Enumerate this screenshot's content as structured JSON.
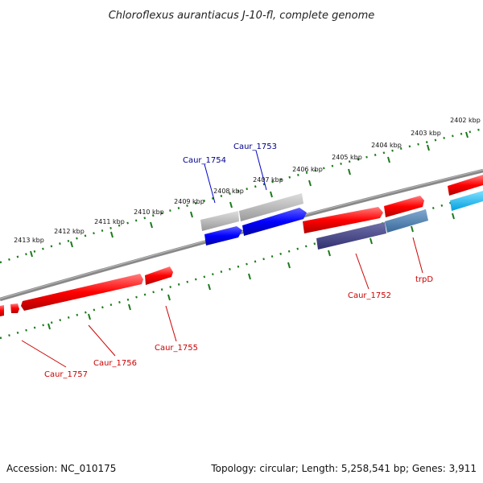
{
  "title": "Chloroflexus aurantiacus J-10-fl, complete genome",
  "footer": {
    "accession": "Accession: NC_010175",
    "summary": "Topology: circular; Length: 5,258,541 bp; Genes: 3,911"
  },
  "colors": {
    "backbone": "#888888",
    "tick": "#1b7a1b",
    "forward_cds": "#ff0000",
    "reverse_cds": "#0000ff",
    "rna": "#aaaaaa",
    "forward_label": "#cc0000",
    "reverse_label": "#00008b",
    "gene_highlight": "#4a4a8a",
    "trpD": "#4a7aaa",
    "cyan": "#00bfff"
  },
  "axis": {
    "tick_labels": [
      "2402 kbp",
      "2403 kbp",
      "2404 kbp",
      "2405 kbp",
      "2406 kbp",
      "2407 kbp",
      "2408 kbp",
      "2409 kbp",
      "2410 kbp",
      "2411 kbp",
      "2412 kbp",
      "2413 kbp"
    ]
  },
  "genes": [
    {
      "name": "Caur_1754",
      "strand": "reverse"
    },
    {
      "name": "Caur_1753",
      "strand": "reverse"
    },
    {
      "name": "Caur_1752",
      "strand": "forward"
    },
    {
      "name": "trpD",
      "strand": "forward"
    },
    {
      "name": "Caur_1755",
      "strand": "forward"
    },
    {
      "name": "Caur_1756",
      "strand": "forward"
    },
    {
      "name": "Caur_1757",
      "strand": "forward"
    }
  ]
}
